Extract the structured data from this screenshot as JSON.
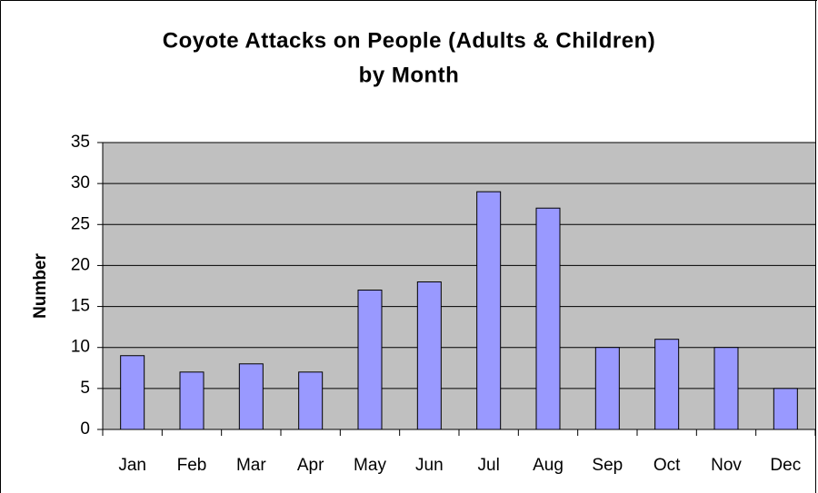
{
  "chart_data": {
    "type": "bar",
    "title": [
      "Coyote Attacks on People (Adults & Children)",
      "by Month"
    ],
    "y_label": "Number",
    "categories": [
      "Jan",
      "Feb",
      "Mar",
      "Apr",
      "May",
      "Jun",
      "Jul",
      "Aug",
      "Sep",
      "Oct",
      "Nov",
      "Dec"
    ],
    "values": [
      9,
      7,
      8,
      7,
      17,
      18,
      29,
      27,
      10,
      11,
      10,
      5
    ],
    "color": "#9999ff",
    "ylim": [
      0,
      35
    ],
    "yticks": [
      0,
      5,
      10,
      15,
      20,
      25,
      30,
      35
    ],
    "grid": true
  }
}
